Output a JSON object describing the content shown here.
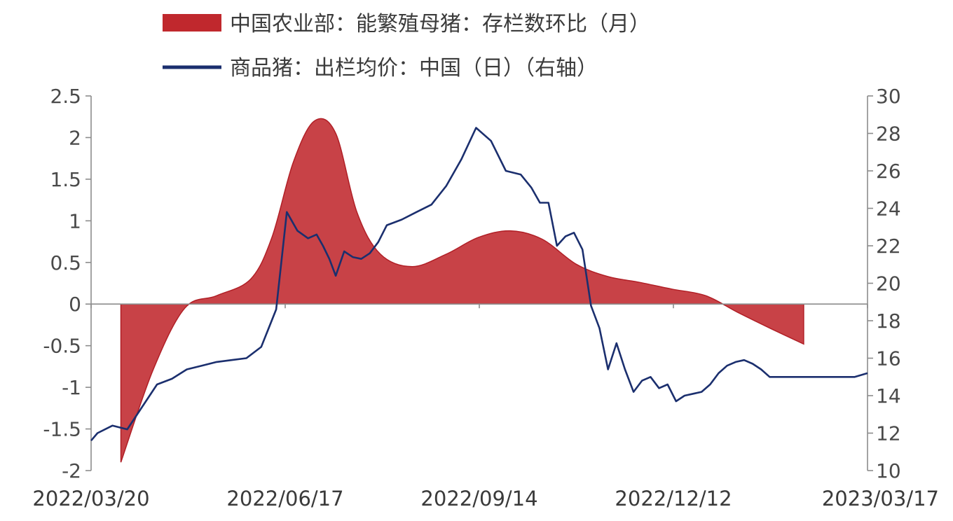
{
  "chart_data": {
    "type": "area",
    "legend_position": "top-center",
    "grid": false,
    "x_tick_labels": [
      "2022/03/20",
      "2022/06/17",
      "2022/09/14",
      "2022/12/12",
      "2023/03/17"
    ],
    "y_left": {
      "ylim": [
        -2,
        2.5
      ],
      "ticks": [
        -2,
        -1.5,
        -1,
        -0.5,
        0,
        0.5,
        1,
        1.5,
        2,
        2.5
      ],
      "tick_labels": [
        "-2",
        "-1.5",
        "-1",
        "-0.5",
        "0",
        "0.5",
        "1",
        "1.5",
        "2",
        "2.5"
      ]
    },
    "y_right": {
      "ylim": [
        10,
        30
      ],
      "ticks": [
        10,
        12,
        14,
        16,
        18,
        20,
        22,
        24,
        26,
        28,
        30
      ],
      "tick_labels": [
        "10",
        "12",
        "14",
        "16",
        "18",
        "20",
        "22",
        "24",
        "26",
        "28",
        "30"
      ]
    },
    "series": [
      {
        "name": "中国农业部：能繁殖母猪：存栏数环比（月）",
        "type": "area",
        "axis": "left",
        "color": "#c0282d",
        "x": [
          "2022-03-31",
          "2022-04-15",
          "2022-04-30",
          "2022-05-15",
          "2022-05-31",
          "2022-06-10",
          "2022-06-20",
          "2022-06-30",
          "2022-07-10",
          "2022-07-20",
          "2022-07-31",
          "2022-08-15",
          "2022-08-31",
          "2022-09-15",
          "2022-09-30",
          "2022-10-15",
          "2022-10-31",
          "2022-11-15",
          "2022-11-30",
          "2022-12-15",
          "2022-12-31",
          "2023-01-15",
          "2023-01-31",
          "2023-02-15"
        ],
        "y": [
          -1.9,
          -0.8,
          -0.05,
          0.1,
          0.3,
          0.8,
          1.7,
          2.2,
          2.05,
          1.1,
          0.6,
          0.45,
          0.6,
          0.8,
          0.88,
          0.78,
          0.48,
          0.33,
          0.26,
          0.18,
          0.1,
          -0.1,
          -0.3,
          -0.48
        ]
      },
      {
        "name": "商品猪：出栏均价：中国（日）（右轴）",
        "type": "line",
        "axis": "right",
        "color": "#1b2f6e",
        "x": [
          "2022-03-17",
          "2022-03-20",
          "2022-03-27",
          "2022-04-03",
          "2022-04-10",
          "2022-04-17",
          "2022-04-24",
          "2022-05-01",
          "2022-05-08",
          "2022-05-15",
          "2022-05-22",
          "2022-05-29",
          "2022-06-05",
          "2022-06-12",
          "2022-06-17",
          "2022-06-22",
          "2022-06-27",
          "2022-07-01",
          "2022-07-04",
          "2022-07-07",
          "2022-07-10",
          "2022-07-14",
          "2022-07-18",
          "2022-07-22",
          "2022-07-26",
          "2022-07-30",
          "2022-08-03",
          "2022-08-10",
          "2022-08-17",
          "2022-08-24",
          "2022-08-31",
          "2022-09-07",
          "2022-09-14",
          "2022-09-21",
          "2022-09-28",
          "2022-10-05",
          "2022-10-10",
          "2022-10-14",
          "2022-10-18",
          "2022-10-22",
          "2022-10-26",
          "2022-10-30",
          "2022-11-03",
          "2022-11-07",
          "2022-11-11",
          "2022-11-15",
          "2022-11-19",
          "2022-11-23",
          "2022-11-27",
          "2022-12-01",
          "2022-12-05",
          "2022-12-09",
          "2022-12-13",
          "2022-12-17",
          "2022-12-21",
          "2022-12-25",
          "2022-12-29",
          "2023-01-02",
          "2023-01-06",
          "2023-01-10",
          "2023-01-14",
          "2023-01-18",
          "2023-01-22",
          "2023-01-26",
          "2023-01-30",
          "2023-02-03",
          "2023-02-07",
          "2023-02-11",
          "2023-02-15",
          "2023-02-19",
          "2023-02-23",
          "2023-02-27",
          "2023-03-03",
          "2023-03-07",
          "2023-03-11",
          "2023-03-17"
        ],
        "y": [
          11.6,
          12.0,
          12.4,
          12.2,
          13.4,
          14.6,
          14.9,
          15.4,
          15.6,
          15.8,
          15.9,
          16.0,
          16.6,
          18.6,
          23.8,
          22.8,
          22.4,
          22.6,
          22.0,
          21.3,
          20.4,
          21.7,
          21.4,
          21.3,
          21.6,
          22.2,
          23.1,
          23.4,
          23.8,
          24.2,
          25.2,
          26.6,
          28.3,
          27.6,
          26.0,
          25.8,
          25.1,
          24.3,
          24.3,
          22.0,
          22.5,
          22.7,
          21.8,
          18.8,
          17.6,
          15.4,
          16.8,
          15.4,
          14.2,
          14.8,
          15.0,
          14.4,
          14.6,
          13.7,
          14.0,
          14.1,
          14.2,
          14.6,
          15.2,
          15.6,
          15.8,
          15.9,
          15.7,
          15.4,
          15.0,
          15.0,
          15.0,
          15.0,
          15.0,
          15.0,
          15.0,
          15.0,
          15.0,
          15.0,
          15.0,
          15.2
        ]
      }
    ]
  }
}
